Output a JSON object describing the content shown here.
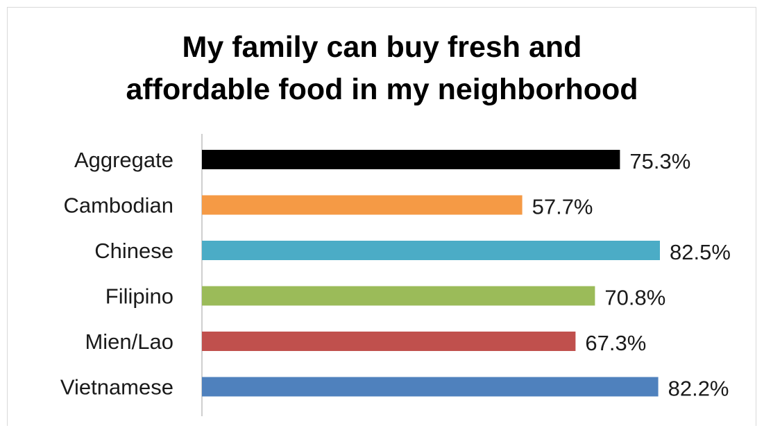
{
  "chart_data": {
    "type": "bar",
    "orientation": "horizontal",
    "title": "My family can buy fresh and\naffordable food in my neighborhood",
    "categories": [
      "Aggregate",
      "Cambodian",
      "Chinese",
      "Filipino",
      "Mien/Lao",
      "Vietnamese"
    ],
    "values": [
      75.3,
      57.7,
      82.5,
      70.8,
      67.3,
      82.2
    ],
    "data_labels": [
      "75.3%",
      "57.7%",
      "82.5%",
      "70.8%",
      "67.3%",
      "82.2%"
    ],
    "colors": [
      "#000000",
      "#f59a45",
      "#4bacc6",
      "#9bbb59",
      "#c0504d",
      "#4f81bd"
    ],
    "xlabel": "",
    "ylabel": "",
    "xlim": [
      0,
      100
    ],
    "grid": false,
    "legend": "none"
  }
}
